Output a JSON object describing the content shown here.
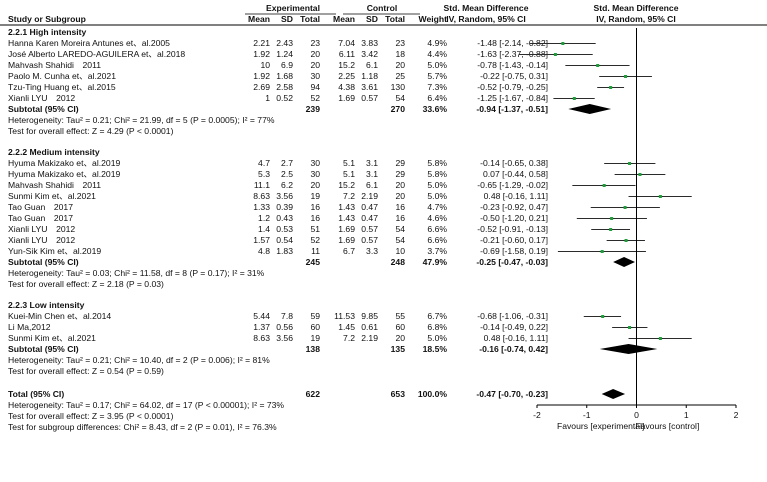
{
  "header": {
    "group_experimental": "Experimental",
    "group_control": "Control",
    "study": "Study or Subgroup",
    "mean_e": "Mean",
    "sd_e": "SD",
    "total_e": "Total",
    "mean_c": "Mean",
    "sd_c": "SD",
    "total_c": "Total",
    "weight": "Weight",
    "smd_title": "Std. Mean Difference",
    "smd_method": "IV, Random, 95% CI",
    "plot_title": "Std. Mean Difference",
    "plot_method": "IV, Random, 95% CI"
  },
  "chart_data": {
    "type": "forest",
    "xlim": [
      -2,
      2
    ],
    "x_ticks": [
      "-2",
      "-1",
      "0",
      "1",
      "2"
    ],
    "favours_left": "Favours [experimental]",
    "favours_right": "Favours [control]",
    "subgroups": [
      {
        "title": "2.2.1 High intensity",
        "studies": [
          {
            "name": "Hanna Karen Moreira Antunes et、al.2005",
            "mean_e": "2.21",
            "sd_e": "2.43",
            "n_e": "23",
            "mean_c": "7.04",
            "sd_c": "3.83",
            "n_c": "23",
            "weight": "4.9%",
            "ci_text": "-1.48 [-2.14, -0.82]",
            "est": -1.48,
            "lo": -2.14,
            "hi": -0.82
          },
          {
            "name": "José Alberto LAREDO-AGUILERA et、al.2018",
            "mean_e": "1.92",
            "sd_e": "1.24",
            "n_e": "20",
            "mean_c": "6.11",
            "sd_c": "3.42",
            "n_c": "18",
            "weight": "4.4%",
            "ci_text": "-1.63 [-2.37, -0.88]",
            "est": -1.63,
            "lo": -2.37,
            "hi": -0.88
          },
          {
            "name": "Mahvash Shahidi　2011",
            "mean_e": "10",
            "sd_e": "6.9",
            "n_e": "20",
            "mean_c": "15.2",
            "sd_c": "6.1",
            "n_c": "20",
            "weight": "5.0%",
            "ci_text": "-0.78 [-1.43, -0.14]",
            "est": -0.78,
            "lo": -1.43,
            "hi": -0.14
          },
          {
            "name": "Paolo M. Cunha et、al.2021",
            "mean_e": "1.92",
            "sd_e": "1.68",
            "n_e": "30",
            "mean_c": "2.25",
            "sd_c": "1.18",
            "n_c": "25",
            "weight": "5.7%",
            "ci_text": "-0.22 [-0.75, 0.31]",
            "est": -0.22,
            "lo": -0.75,
            "hi": 0.31
          },
          {
            "name": "Tzu-Ting Huang et、al.2015",
            "mean_e": "2.69",
            "sd_e": "2.58",
            "n_e": "94",
            "mean_c": "4.38",
            "sd_c": "3.61",
            "n_c": "130",
            "weight": "7.3%",
            "ci_text": "-0.52 [-0.79, -0.25]",
            "est": -0.52,
            "lo": -0.79,
            "hi": -0.25
          },
          {
            "name": "Xianli LYU　2012",
            "mean_e": "1",
            "sd_e": "0.52",
            "n_e": "52",
            "mean_c": "1.69",
            "sd_c": "0.57",
            "n_c": "54",
            "weight": "6.4%",
            "ci_text": "-1.25 [-1.67, -0.84]",
            "est": -1.25,
            "lo": -1.67,
            "hi": -0.84
          }
        ],
        "subtotal": {
          "label": "Subtotal (95% CI)",
          "n_e": "239",
          "n_c": "270",
          "weight": "33.6%",
          "ci_text": "-0.94 [-1.37, -0.51]",
          "est": -0.94,
          "lo": -1.37,
          "hi": -0.51
        },
        "heterogeneity": "Heterogeneity: Tau² = 0.21; Chi² = 21.99, df = 5 (P = 0.0005); I² = 77%",
        "overall": "Test for overall effect: Z = 4.29 (P < 0.0001)"
      },
      {
        "title": "2.2.2 Medium intensity",
        "studies": [
          {
            "name": "Hyuma Makizako et、al.2019",
            "mean_e": "4.7",
            "sd_e": "2.7",
            "n_e": "30",
            "mean_c": "5.1",
            "sd_c": "3.1",
            "n_c": "29",
            "weight": "5.8%",
            "ci_text": "-0.14 [-0.65, 0.38]",
            "est": -0.14,
            "lo": -0.65,
            "hi": 0.38
          },
          {
            "name": "Hyuma Makizako et、al.2019",
            "mean_e": "5.3",
            "sd_e": "2.5",
            "n_e": "30",
            "mean_c": "5.1",
            "sd_c": "3.1",
            "n_c": "29",
            "weight": "5.8%",
            "ci_text": "0.07 [-0.44, 0.58]",
            "est": 0.07,
            "lo": -0.44,
            "hi": 0.58
          },
          {
            "name": "Mahvash Shahidi　2011",
            "mean_e": "11.1",
            "sd_e": "6.2",
            "n_e": "20",
            "mean_c": "15.2",
            "sd_c": "6.1",
            "n_c": "20",
            "weight": "5.0%",
            "ci_text": "-0.65 [-1.29, -0.02]",
            "est": -0.65,
            "lo": -1.29,
            "hi": -0.02
          },
          {
            "name": "Sunmi Kim et、al.2021",
            "mean_e": "8.63",
            "sd_e": "3.56",
            "n_e": "19",
            "mean_c": "7.2",
            "sd_c": "2.19",
            "n_c": "20",
            "weight": "5.0%",
            "ci_text": "0.48 [-0.16, 1.11]",
            "est": 0.48,
            "lo": -0.16,
            "hi": 1.11
          },
          {
            "name": "Tao Guan　2017",
            "mean_e": "1.33",
            "sd_e": "0.39",
            "n_e": "16",
            "mean_c": "1.43",
            "sd_c": "0.47",
            "n_c": "16",
            "weight": "4.7%",
            "ci_text": "-0.23 [-0.92, 0.47]",
            "est": -0.23,
            "lo": -0.92,
            "hi": 0.47
          },
          {
            "name": "Tao Guan　2017",
            "mean_e": "1.2",
            "sd_e": "0.43",
            "n_e": "16",
            "mean_c": "1.43",
            "sd_c": "0.47",
            "n_c": "16",
            "weight": "4.6%",
            "ci_text": "-0.50 [-1.20, 0.21]",
            "est": -0.5,
            "lo": -1.2,
            "hi": 0.21
          },
          {
            "name": "Xianli LYU　2012",
            "mean_e": "1.4",
            "sd_e": "0.53",
            "n_e": "51",
            "mean_c": "1.69",
            "sd_c": "0.57",
            "n_c": "54",
            "weight": "6.6%",
            "ci_text": "-0.52 [-0.91, -0.13]",
            "est": -0.52,
            "lo": -0.91,
            "hi": -0.13
          },
          {
            "name": "Xianli LYU　2012",
            "mean_e": "1.57",
            "sd_e": "0.54",
            "n_e": "52",
            "mean_c": "1.69",
            "sd_c": "0.57",
            "n_c": "54",
            "weight": "6.6%",
            "ci_text": "-0.21 [-0.60, 0.17]",
            "est": -0.21,
            "lo": -0.6,
            "hi": 0.17
          },
          {
            "name": "Yun-Sik Kim et、al.2019",
            "mean_e": "4.8",
            "sd_e": "1.83",
            "n_e": "11",
            "mean_c": "6.7",
            "sd_c": "3.3",
            "n_c": "10",
            "weight": "3.7%",
            "ci_text": "-0.69 [-1.58, 0.19]",
            "est": -0.69,
            "lo": -1.58,
            "hi": 0.19
          }
        ],
        "subtotal": {
          "label": "Subtotal (95% CI)",
          "n_e": "245",
          "n_c": "248",
          "weight": "47.9%",
          "ci_text": "-0.25 [-0.47, -0.03]",
          "est": -0.25,
          "lo": -0.47,
          "hi": -0.03
        },
        "heterogeneity": "Heterogeneity: Tau² = 0.03; Chi² = 11.58, df = 8 (P = 0.17); I² = 31%",
        "overall": "Test for overall effect: Z = 2.18 (P = 0.03)"
      },
      {
        "title": "2.2.3 Low intensity",
        "studies": [
          {
            "name": "Kuei-Min Chen et、al.2014",
            "mean_e": "5.44",
            "sd_e": "7.8",
            "n_e": "59",
            "mean_c": "11.53",
            "sd_c": "9.85",
            "n_c": "55",
            "weight": "6.7%",
            "ci_text": "-0.68 [-1.06, -0.31]",
            "est": -0.68,
            "lo": -1.06,
            "hi": -0.31
          },
          {
            "name": "Li Ma,2012",
            "mean_e": "1.37",
            "sd_e": "0.56",
            "n_e": "60",
            "mean_c": "1.45",
            "sd_c": "0.61",
            "n_c": "60",
            "weight": "6.8%",
            "ci_text": "-0.14 [-0.49, 0.22]",
            "est": -0.14,
            "lo": -0.49,
            "hi": 0.22
          },
          {
            "name": "Sunmi Kim et、al.2021",
            "mean_e": "8.63",
            "sd_e": "3.56",
            "n_e": "19",
            "mean_c": "7.2",
            "sd_c": "2.19",
            "n_c": "20",
            "weight": "5.0%",
            "ci_text": "0.48 [-0.16, 1.11]",
            "est": 0.48,
            "lo": -0.16,
            "hi": 1.11
          }
        ],
        "subtotal": {
          "label": "Subtotal (95% CI)",
          "n_e": "138",
          "n_c": "135",
          "weight": "18.5%",
          "ci_text": "-0.16 [-0.74, 0.42]",
          "est": -0.16,
          "lo": -0.74,
          "hi": 0.42
        },
        "heterogeneity": "Heterogeneity: Tau² = 0.21; Chi² = 10.40, df = 2 (P = 0.006); I² = 81%",
        "overall": "Test for overall effect: Z = 0.54 (P = 0.59)"
      }
    ],
    "total": {
      "label": "Total (95% CI)",
      "n_e": "622",
      "n_c": "653",
      "weight": "100.0%",
      "ci_text": "-0.47 [-0.70, -0.23]",
      "est": -0.47,
      "lo": -0.7,
      "hi": -0.23
    },
    "total_heterogeneity": "Heterogeneity: Tau² = 0.17; Chi² = 64.02, df = 17 (P < 0.00001); I² = 73%",
    "total_overall": "Test for overall effect: Z = 3.95 (P < 0.0001)",
    "subgroup_differences": "Test for subgroup differences: Chi² = 8.43, df = 2 (P = 0.01), I² = 76.3%"
  }
}
